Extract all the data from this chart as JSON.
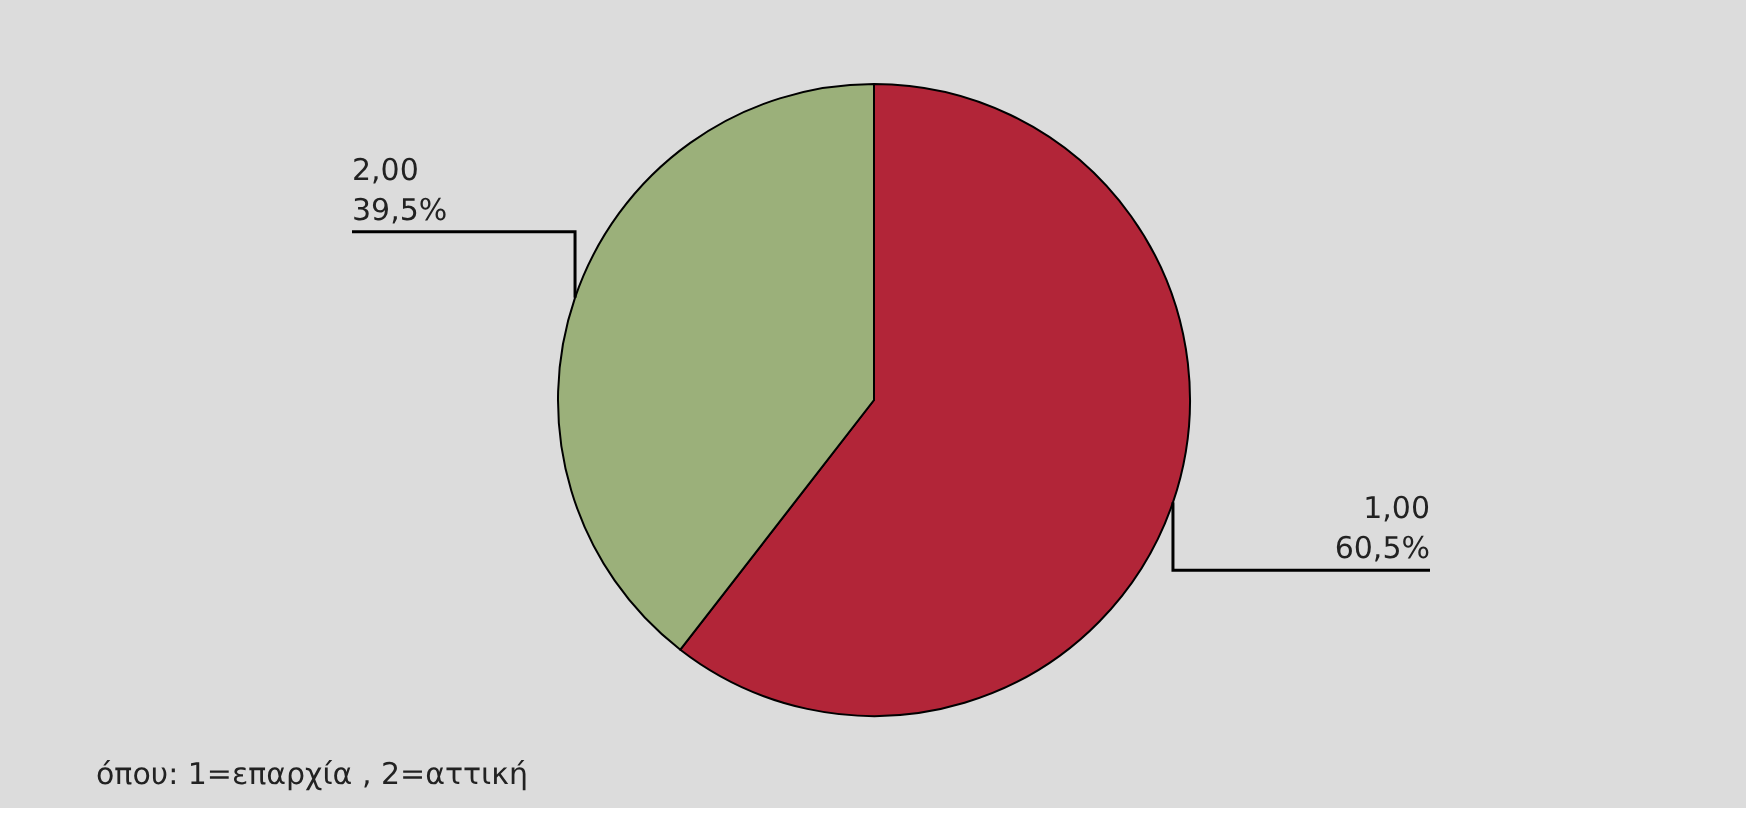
{
  "chart_data": {
    "type": "pie",
    "categories": [
      "1,00",
      "2,00"
    ],
    "values": [
      60.5,
      39.5
    ],
    "colors": [
      "#b22538",
      "#9bb07a"
    ],
    "value_labels": [
      "60,5%",
      "39,5%"
    ],
    "annotations": [
      "όπου:  1=επαρχία , 2=αττική"
    ]
  }
}
